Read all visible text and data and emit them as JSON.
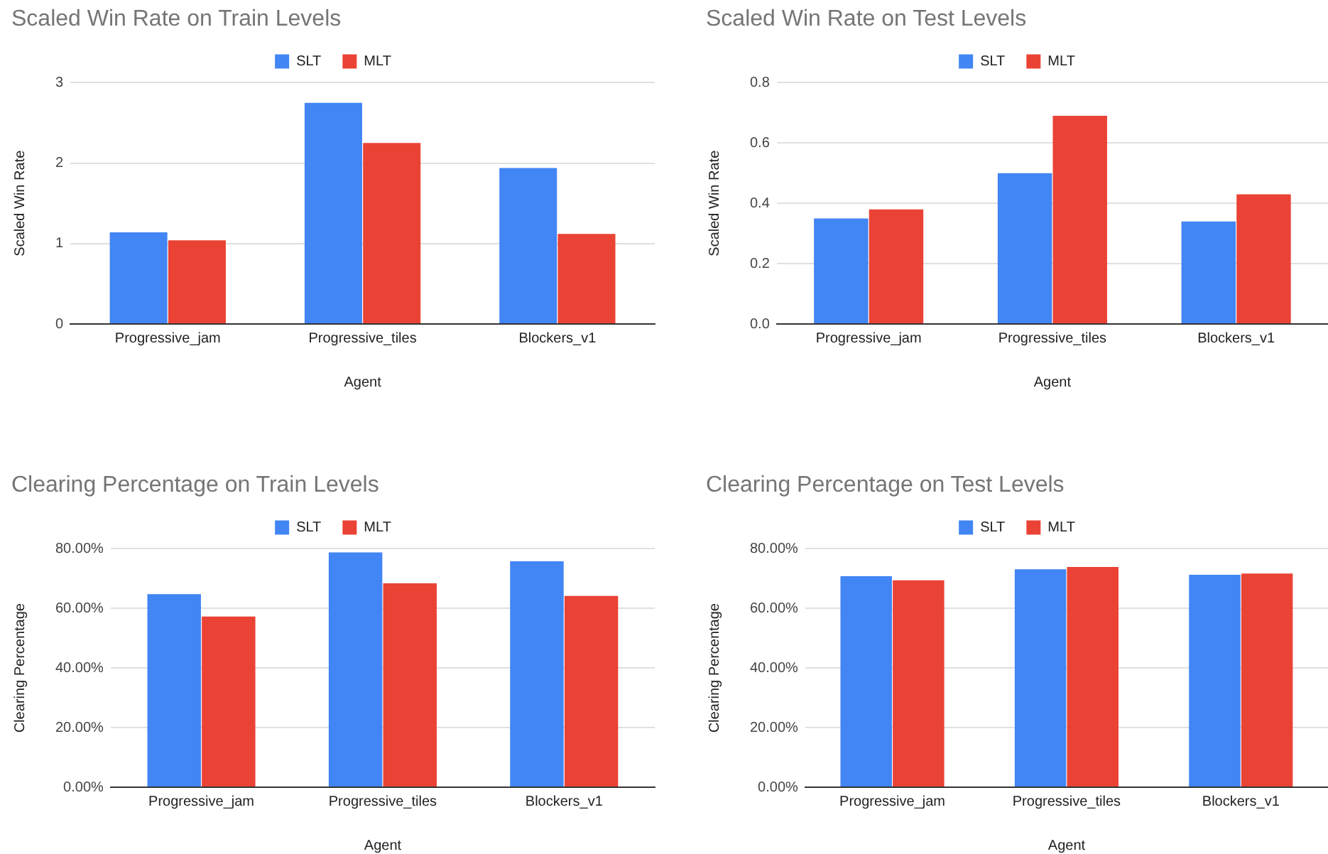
{
  "chart_data": [
    {
      "type": "bar",
      "title": "Scaled Win Rate on Train Levels",
      "xlabel": "Agent",
      "ylabel": "Scaled Win Rate",
      "categories": [
        "Progressive_jam",
        "Progressive_tiles",
        "Blockers_v1"
      ],
      "series": [
        {
          "name": "SLT",
          "color": "#4285f4",
          "values": [
            1.14,
            2.75,
            1.94
          ]
        },
        {
          "name": "MLT",
          "color": "#ea4335",
          "values": [
            1.04,
            2.25,
            1.12
          ]
        }
      ],
      "ylim": [
        0,
        3
      ],
      "yticks": [
        0,
        1,
        2,
        3
      ],
      "grid": "y",
      "legend": "top"
    },
    {
      "type": "bar",
      "title": "Scaled Win Rate on Test Levels",
      "xlabel": "Agent",
      "ylabel": "Scaled Win Rate",
      "categories": [
        "Progressive_jam",
        "Progressive_tiles",
        "Blockers_v1"
      ],
      "series": [
        {
          "name": "SLT",
          "color": "#4285f4",
          "values": [
            0.35,
            0.5,
            0.34
          ]
        },
        {
          "name": "MLT",
          "color": "#ea4335",
          "values": [
            0.38,
            0.69,
            0.43
          ]
        }
      ],
      "ylim": [
        0,
        0.8
      ],
      "yticks": [
        {
          "value": 0,
          "label": "0.0"
        },
        0.2,
        0.4,
        0.6,
        0.8
      ],
      "grid": "y",
      "legend": "top"
    },
    {
      "type": "bar",
      "title": "Clearing Percentage on Train Levels",
      "xlabel": "Agent",
      "ylabel": "Clearing Percentage",
      "categories": [
        "Progressive_jam",
        "Progressive_tiles",
        "Blockers_v1"
      ],
      "series": [
        {
          "name": "SLT",
          "color": "#4285f4",
          "values": [
            64.8,
            78.8,
            75.8
          ]
        },
        {
          "name": "MLT",
          "color": "#ea4335",
          "values": [
            57.3,
            68.4,
            64.2
          ]
        }
      ],
      "ylim": [
        0,
        80
      ],
      "yticks": [
        {
          "value": 0,
          "label": "0.00%"
        },
        {
          "value": 20,
          "label": "20.00%"
        },
        {
          "value": 40,
          "label": "40.00%"
        },
        {
          "value": 60,
          "label": "60.00%"
        },
        {
          "value": 80,
          "label": "80.00%"
        }
      ],
      "grid": "y",
      "legend": "top"
    },
    {
      "type": "bar",
      "title": "Clearing Percentage on Test Levels",
      "xlabel": "Agent",
      "ylabel": "Clearing Percentage",
      "categories": [
        "Progressive_jam",
        "Progressive_tiles",
        "Blockers_v1"
      ],
      "series": [
        {
          "name": "SLT",
          "color": "#4285f4",
          "values": [
            70.8,
            73.1,
            71.3
          ]
        },
        {
          "name": "MLT",
          "color": "#ea4335",
          "values": [
            69.4,
            73.9,
            71.7
          ]
        }
      ],
      "ylim": [
        0,
        80
      ],
      "yticks": [
        {
          "value": 0,
          "label": "0.00%"
        },
        {
          "value": 20,
          "label": "20.00%"
        },
        {
          "value": 40,
          "label": "40.00%"
        },
        {
          "value": 60,
          "label": "60.00%"
        },
        {
          "value": 80,
          "label": "80.00%"
        }
      ],
      "grid": "y",
      "legend": "top"
    }
  ]
}
